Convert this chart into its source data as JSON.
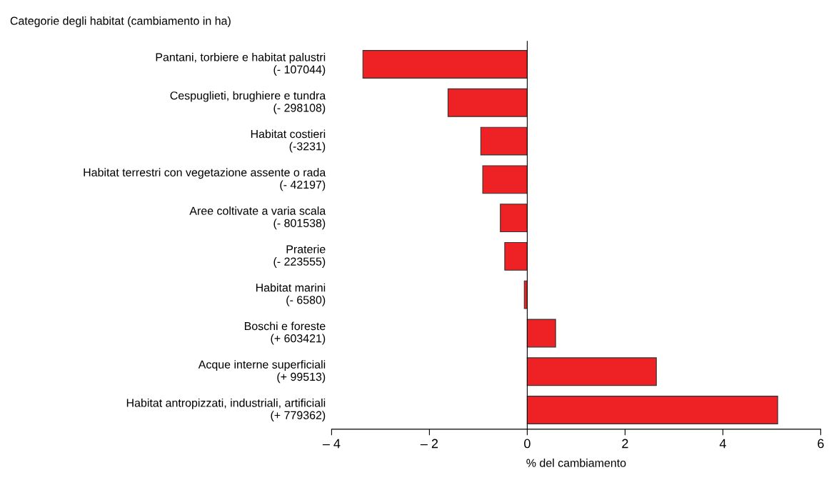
{
  "chart_data": {
    "type": "bar",
    "orientation": "horizontal",
    "title": "Categorie degli habitat (cambiamento in ha)",
    "xlabel": "% del cambiamento",
    "categories": [
      "Pantani, torbiere e habitat palustri\n(- 107044)",
      "Cespuglieti, brughiere e tundra\n(- 298108)",
      "Habitat costieri\n(-3231)",
      "Habitat terrestri con vegetazione assente o rada\n(- 42197)",
      "Aree coltivate a varia scala\n(- 801538)",
      "Praterie\n(- 223555)",
      "Habitat marini\n(- 6580)",
      "Boschi e foreste\n(+ 603421)",
      "Acque interne superficiali\n(+ 99513)",
      "Habitat antropizzati, industriali, artificiali\n(+ 779362)"
    ],
    "values": [
      -3.36,
      -1.62,
      -0.95,
      -0.91,
      -0.55,
      -0.46,
      -0.06,
      0.58,
      2.64,
      5.12
    ],
    "color": "#ee2224",
    "xlim": [
      -4,
      6
    ],
    "xticks": [
      {
        "value": -4,
        "label": "– 4"
      },
      {
        "value": -2,
        "label": "– 2"
      },
      0,
      2,
      4,
      6
    ],
    "legend": false
  }
}
